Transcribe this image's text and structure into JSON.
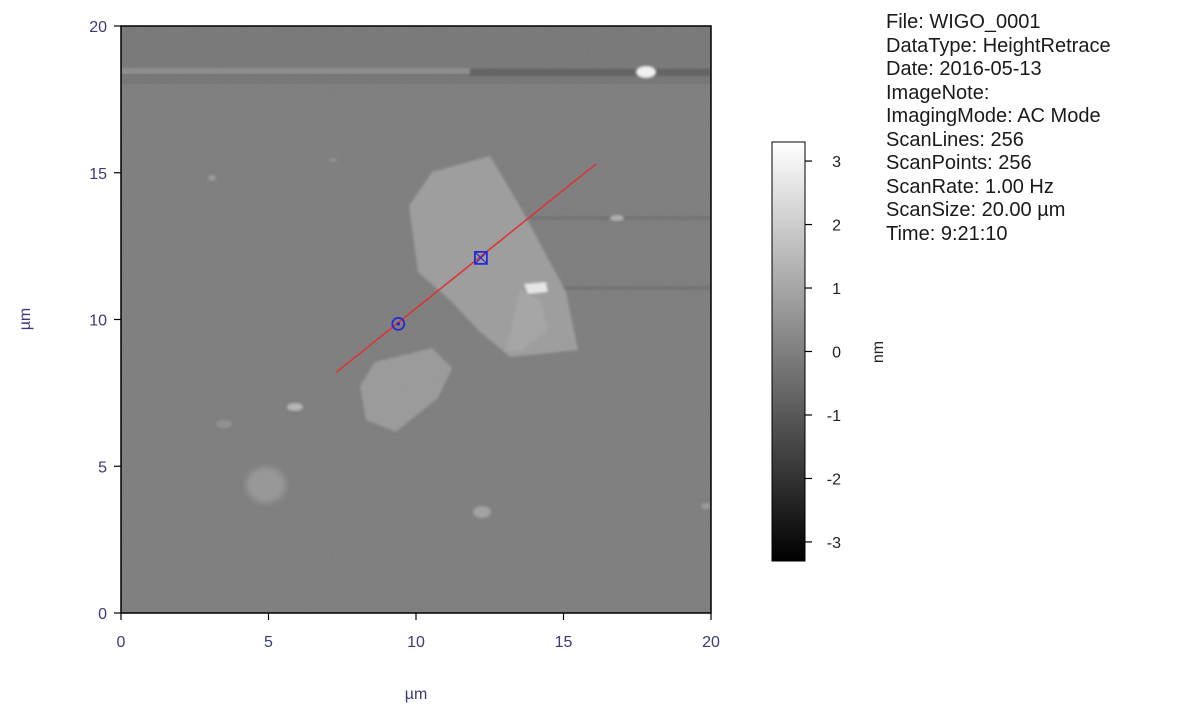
{
  "chart_data": {
    "type": "heatmap",
    "title": "",
    "xlabel": "µm",
    "ylabel": "µm",
    "xlim": [
      0,
      20
    ],
    "ylim": [
      0,
      20
    ],
    "xticks": [
      0,
      5,
      10,
      15,
      20
    ],
    "yticks": [
      0,
      5,
      10,
      15,
      20
    ],
    "colormap": "grayscale",
    "colorbar": {
      "label": "nm",
      "range": [
        -3.3,
        3.3
      ],
      "ticks": [
        3,
        2,
        1,
        0,
        -1,
        -2,
        -3
      ]
    },
    "line_profile": {
      "color": "#e03030",
      "start": [
        7.3,
        8.2
      ],
      "end": [
        16.1,
        15.3
      ]
    },
    "markers": [
      {
        "shape": "circle",
        "x": 9.4,
        "y": 9.85,
        "color": "#2a2ad0"
      },
      {
        "shape": "square",
        "x": 12.2,
        "y": 12.1,
        "color": "#2a2ad0"
      }
    ]
  },
  "metadata": [
    "File: WIGO_0001",
    "DataType: HeightRetrace",
    "Date: 2016-05-13",
    "ImageNote:",
    "ImagingMode: AC Mode",
    "ScanLines: 256",
    "ScanPoints: 256",
    "ScanRate: 1.00 Hz",
    "ScanSize: 20.00 µm",
    "Time: 9:21:10"
  ]
}
